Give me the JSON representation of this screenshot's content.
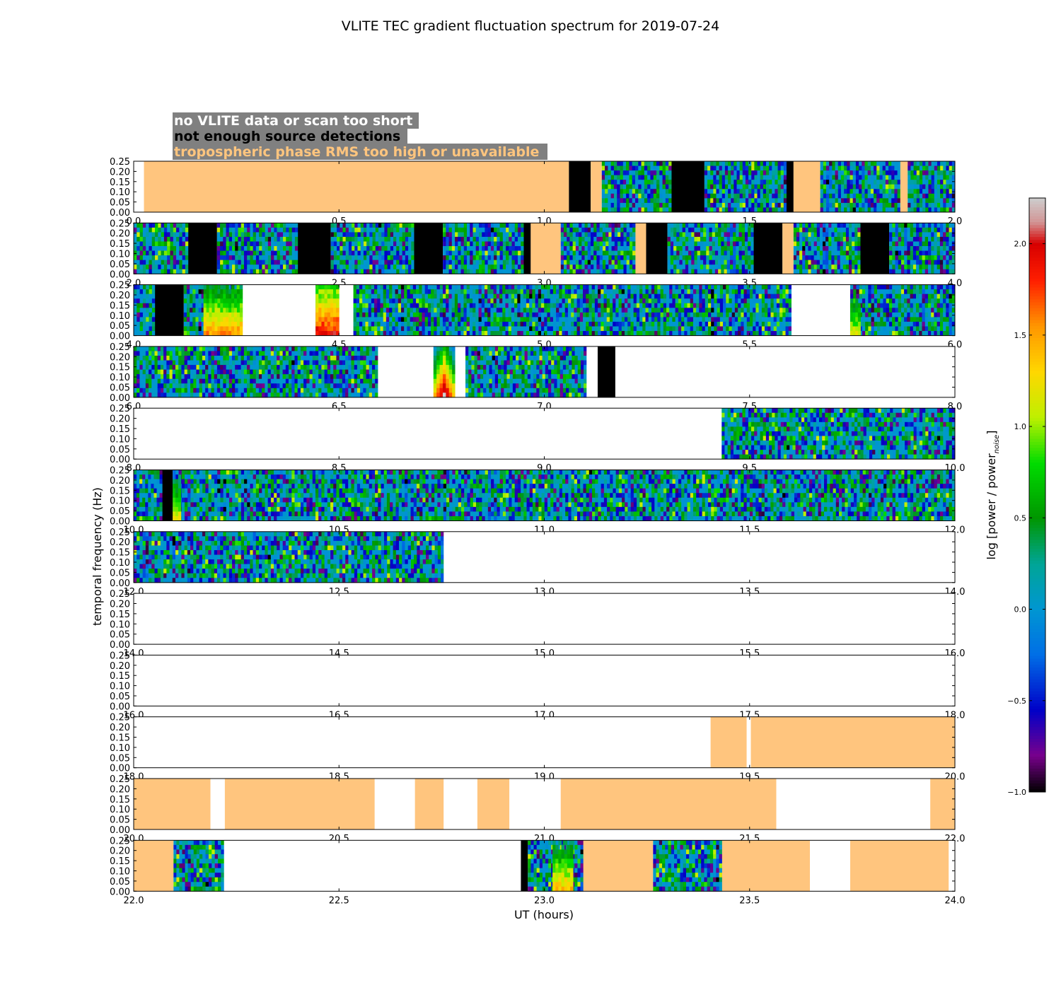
{
  "chart_data": {
    "type": "heatmap",
    "title": "VLITE TEC gradient fluctuation spectrum for 2019-07-24",
    "xlabel": "UT (hours)",
    "ylabel": "temporal frequency (Hz)",
    "colorbar": {
      "label": "log [power / power",
      "label_sub": "noise",
      "label_end": "]",
      "range": [
        -1.0,
        2.25
      ],
      "ticks": [
        "−1.0",
        "−0.5",
        "0.0",
        "0.5",
        "1.0",
        "1.5",
        "2.0"
      ],
      "tick_values": [
        -1.0,
        -0.5,
        0.0,
        0.5,
        1.0,
        1.5,
        2.0
      ]
    },
    "legend": [
      {
        "text": "no VLITE data or scan too short",
        "color": "#ffffff",
        "meaning": "white"
      },
      {
        "text": "not enough source detections",
        "color": "#000000",
        "meaning": "black"
      },
      {
        "text": "tropospheric phase RMS too high or unavailable",
        "color": "#ffc57e",
        "meaning": "orange"
      }
    ],
    "legend_box_color": "#808080",
    "y_ticks": [
      "0.00",
      "0.05",
      "0.10",
      "0.15",
      "0.20",
      "0.25"
    ],
    "y_tick_values": [
      0.0,
      0.05,
      0.1,
      0.15,
      0.2,
      0.25
    ],
    "ylim": [
      0.0,
      0.25
    ],
    "colors": {
      "orange": "#ffc57e",
      "black": "#000000",
      "white": "#ffffff",
      "gray": "#c0c0c0"
    },
    "panels": [
      {
        "xlim": [
          0,
          2
        ],
        "x_ticks": [
          "0.0",
          "0.5",
          "1.0",
          "1.5",
          "2.0"
        ],
        "segments": [
          [
            0.0,
            0.025,
            "white"
          ],
          [
            0.025,
            1.06,
            "orange"
          ],
          [
            1.06,
            1.113,
            "black"
          ],
          [
            1.113,
            1.14,
            "orange"
          ],
          [
            1.14,
            1.31,
            "spec"
          ],
          [
            1.31,
            1.39,
            "black"
          ],
          [
            1.39,
            1.59,
            "spec"
          ],
          [
            1.59,
            1.607,
            "black"
          ],
          [
            1.607,
            1.672,
            "orange"
          ],
          [
            1.672,
            1.867,
            "spec"
          ],
          [
            1.867,
            1.885,
            "orange"
          ],
          [
            1.885,
            2.0,
            "spec"
          ]
        ]
      },
      {
        "xlim": [
          2,
          4
        ],
        "x_ticks": [
          "2.0",
          "2.5",
          "3.0",
          "3.5",
          "4.0"
        ],
        "segments": [
          [
            2.0,
            2.133,
            "spec"
          ],
          [
            2.133,
            2.203,
            "black"
          ],
          [
            2.203,
            2.4,
            "spec"
          ],
          [
            2.4,
            2.48,
            "black"
          ],
          [
            2.48,
            2.683,
            "spec"
          ],
          [
            2.683,
            2.753,
            "black"
          ],
          [
            2.753,
            2.95,
            "spec"
          ],
          [
            2.95,
            2.967,
            "black"
          ],
          [
            2.967,
            3.04,
            "orange"
          ],
          [
            3.04,
            3.222,
            "spec"
          ],
          [
            3.222,
            3.248,
            "orange"
          ],
          [
            3.248,
            3.3,
            "black"
          ],
          [
            3.3,
            3.51,
            "spec"
          ],
          [
            3.51,
            3.58,
            "black"
          ],
          [
            3.58,
            3.607,
            "orange"
          ],
          [
            3.607,
            3.77,
            "spec"
          ],
          [
            3.77,
            3.84,
            "black"
          ],
          [
            3.84,
            4.0,
            "spec"
          ]
        ]
      },
      {
        "xlim": [
          4,
          6
        ],
        "x_ticks": [
          "4.0",
          "4.5",
          "5.0",
          "5.5",
          "6.0"
        ],
        "segments": [
          [
            4.0,
            4.052,
            "spec"
          ],
          [
            4.052,
            4.122,
            "black"
          ],
          [
            4.122,
            4.265,
            "spec"
          ],
          [
            4.265,
            4.443,
            "white"
          ],
          [
            4.443,
            4.5,
            "spec"
          ],
          [
            4.5,
            4.535,
            "white"
          ],
          [
            4.535,
            5.602,
            "spec"
          ],
          [
            5.602,
            5.745,
            "white"
          ],
          [
            5.745,
            6.0,
            "spec"
          ]
        ],
        "hot": [
          {
            "x0": 4.17,
            "x1": 4.265,
            "level": 1.5
          },
          {
            "x0": 4.443,
            "x1": 4.5,
            "level": 1.9
          },
          {
            "x0": 5.745,
            "x1": 5.77,
            "level": 1.1
          }
        ]
      },
      {
        "xlim": [
          6,
          8
        ],
        "x_ticks": [
          "6.0",
          "6.5",
          "7.0",
          "7.5",
          "8.0"
        ],
        "segments": [
          [
            6.0,
            6.595,
            "spec"
          ],
          [
            6.595,
            6.73,
            "white"
          ],
          [
            6.73,
            6.783,
            "hot"
          ],
          [
            6.783,
            6.808,
            "white"
          ],
          [
            6.808,
            7.103,
            "spec"
          ],
          [
            7.103,
            7.13,
            "white"
          ],
          [
            7.13,
            7.173,
            "black"
          ],
          [
            7.173,
            8.0,
            "white"
          ]
        ]
      },
      {
        "xlim": [
          8,
          10
        ],
        "x_ticks": [
          "8.0",
          "8.5",
          "9.0",
          "9.5",
          "10.0"
        ],
        "segments": [
          [
            8.0,
            9.432,
            "white"
          ],
          [
            9.432,
            10.0,
            "spec"
          ]
        ]
      },
      {
        "xlim": [
          10,
          12
        ],
        "x_ticks": [
          "10.0",
          "10.5",
          "11.0",
          "11.5",
          "12.0"
        ],
        "segments": [
          [
            10.0,
            10.07,
            "spec"
          ],
          [
            10.07,
            10.095,
            "black"
          ],
          [
            10.095,
            12.0,
            "spec"
          ]
        ],
        "hot": [
          {
            "x0": 10.095,
            "x1": 10.115,
            "level": 1.2
          }
        ]
      },
      {
        "xlim": [
          12,
          14
        ],
        "x_ticks": [
          "12.0",
          "12.5",
          "13.0",
          "13.5",
          "14.0"
        ],
        "segments": [
          [
            12.0,
            12.755,
            "spec"
          ],
          [
            12.755,
            14.0,
            "white"
          ]
        ]
      },
      {
        "xlim": [
          14,
          16
        ],
        "x_ticks": [
          "14.0",
          "14.5",
          "15.0",
          "15.5",
          "16.0"
        ],
        "segments": [
          [
            14.0,
            16.0,
            "white"
          ]
        ]
      },
      {
        "xlim": [
          16,
          18
        ],
        "x_ticks": [
          "16.0",
          "16.5",
          "17.0",
          "17.5",
          "18.0"
        ],
        "segments": [
          [
            16.0,
            18.0,
            "white"
          ]
        ]
      },
      {
        "xlim": [
          18,
          20
        ],
        "x_ticks": [
          "18.0",
          "18.5",
          "19.0",
          "19.5",
          "20.0"
        ],
        "segments": [
          [
            18.0,
            19.405,
            "white"
          ],
          [
            19.405,
            19.493,
            "orange"
          ],
          [
            19.493,
            19.503,
            "white"
          ],
          [
            19.503,
            20.0,
            "orange"
          ]
        ]
      },
      {
        "xlim": [
          20,
          22
        ],
        "x_ticks": [
          "20.0",
          "20.5",
          "21.0",
          "21.5",
          "22.0"
        ],
        "segments": [
          [
            20.0,
            20.187,
            "orange"
          ],
          [
            20.187,
            20.222,
            "white"
          ],
          [
            20.222,
            20.587,
            "orange"
          ],
          [
            20.587,
            20.685,
            "white"
          ],
          [
            20.685,
            20.755,
            "orange"
          ],
          [
            20.755,
            20.837,
            "white"
          ],
          [
            20.837,
            20.915,
            "orange"
          ],
          [
            20.915,
            21.04,
            "white"
          ],
          [
            21.04,
            21.565,
            "orange"
          ],
          [
            21.565,
            21.94,
            "white"
          ],
          [
            21.94,
            22.0,
            "orange"
          ]
        ]
      },
      {
        "xlim": [
          22,
          24
        ],
        "x_ticks": [
          "22.0",
          "22.5",
          "23.0",
          "23.5",
          "24.0"
        ],
        "segments": [
          [
            22.0,
            22.097,
            "orange"
          ],
          [
            22.097,
            22.16,
            "spec"
          ],
          [
            22.16,
            22.22,
            "spec"
          ],
          [
            22.22,
            22.943,
            "white"
          ],
          [
            22.943,
            22.96,
            "black"
          ],
          [
            22.96,
            23.095,
            "spec"
          ],
          [
            23.095,
            23.265,
            "orange"
          ],
          [
            23.265,
            23.433,
            "spec"
          ],
          [
            23.433,
            23.647,
            "orange"
          ],
          [
            23.647,
            23.745,
            "white"
          ],
          [
            23.745,
            23.985,
            "orange"
          ],
          [
            23.985,
            24.0,
            "white"
          ]
        ],
        "hot": [
          {
            "x0": 23.02,
            "x1": 23.07,
            "level": 1.4
          }
        ]
      }
    ]
  }
}
